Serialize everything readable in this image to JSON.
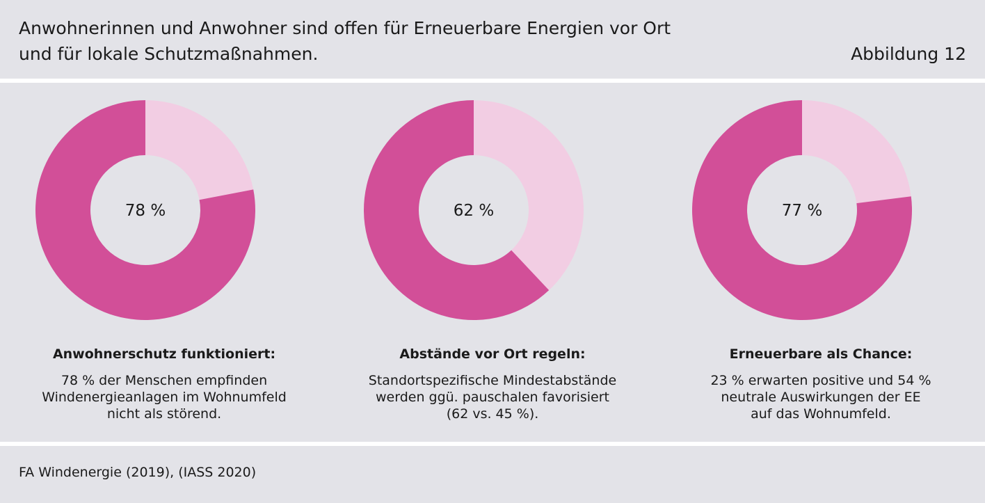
{
  "header": {
    "title_line1": "Anwohnerinnen und Anwohner sind offen für Erneuerbare Energien vor Ort",
    "title_line2": "und für lokale Schutzmaßnahmen.",
    "figure_label": "Abbildung 12"
  },
  "colors": {
    "primary": "#d24f98",
    "secondary": "#f2cde3",
    "hole": "#e3e3e8"
  },
  "chart_data": [
    {
      "type": "pie",
      "center_label": "78 %",
      "slices": [
        {
          "value": 78,
          "color": "#d24f98"
        },
        {
          "value": 22,
          "color": "#f2cde3"
        }
      ],
      "caption_title": "Anwohnerschutz funktioniert:",
      "caption_lines": [
        "78 % der Menschen empfinden",
        "Windenergieanlagen im Wohnumfeld",
        "nicht als störend."
      ]
    },
    {
      "type": "pie",
      "center_label": "62 %",
      "slices": [
        {
          "value": 62,
          "color": "#d24f98"
        },
        {
          "value": 38,
          "color": "#f2cde3"
        }
      ],
      "caption_title": "Abstände vor Ort regeln:",
      "caption_lines": [
        "Standortspezifische Mindestabstände",
        "werden ggü. pauschalen favorisiert",
        "(62 vs. 45 %)."
      ]
    },
    {
      "type": "pie",
      "center_label": "77 %",
      "slices": [
        {
          "value": 77,
          "color": "#d24f98"
        },
        {
          "value": 23,
          "color": "#f2cde3"
        }
      ],
      "caption_title": "Erneuerbare als Chance:",
      "caption_lines": [
        "23 % erwarten positive und 54 %",
        "neutrale Auswirkungen der EE",
        "auf das Wohnumfeld."
      ]
    }
  ],
  "source": "FA Windenergie (2019), (IASS 2020)"
}
